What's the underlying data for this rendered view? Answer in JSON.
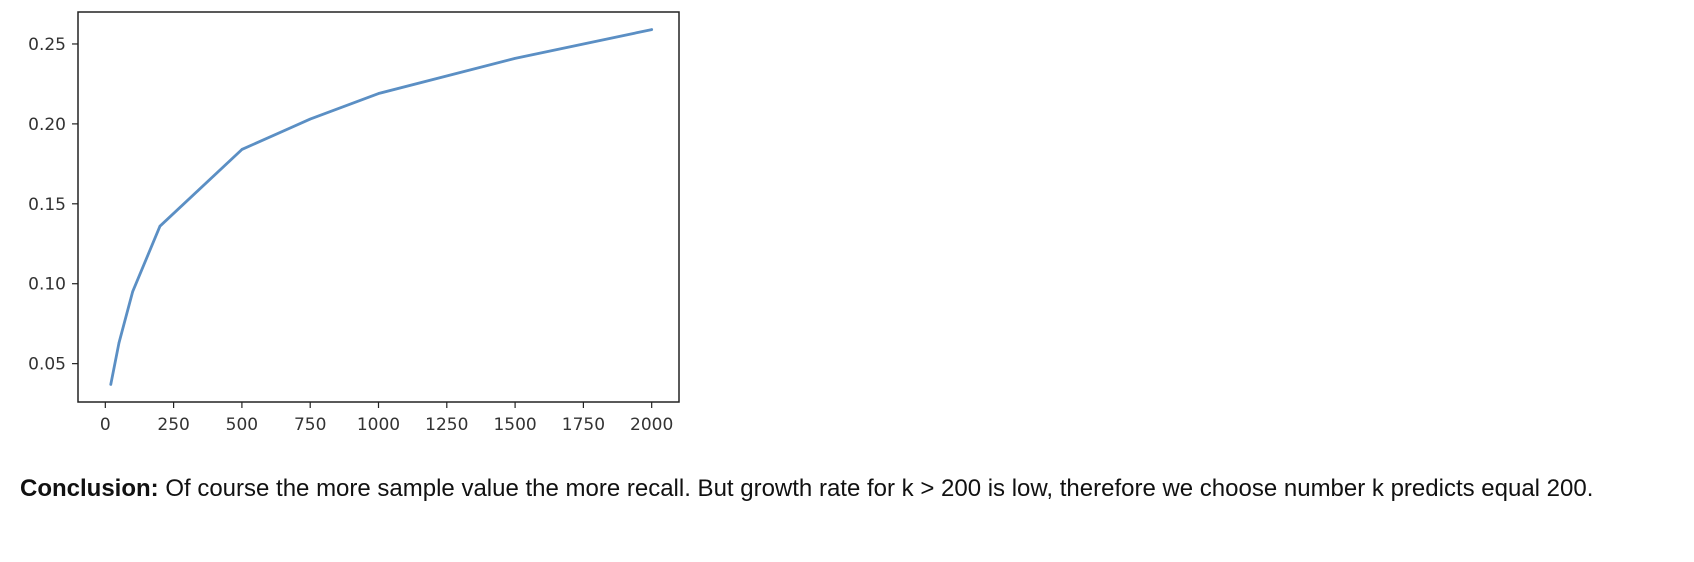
{
  "chart_data": {
    "type": "line",
    "x": [
      20,
      50,
      100,
      200,
      500,
      750,
      1000,
      1500,
      2000
    ],
    "series": [
      {
        "values": [
          0.037,
          0.063,
          0.095,
          0.136,
          0.184,
          0.203,
          0.219,
          0.241,
          0.259
        ],
        "color": "#5b8fc4"
      }
    ],
    "xlim": [
      -100,
      2100
    ],
    "ylim": [
      0.026,
      0.27
    ],
    "x_ticks": [
      0,
      250,
      500,
      750,
      1000,
      1250,
      1500,
      1750,
      2000
    ],
    "y_ticks": [
      0.05,
      0.1,
      0.15,
      0.2,
      0.25
    ],
    "x_tick_labels": [
      "0",
      "250",
      "500",
      "750",
      "1000",
      "1250",
      "1500",
      "1750",
      "2000"
    ],
    "y_tick_labels": [
      "0.05",
      "0.10",
      "0.15",
      "0.20",
      "0.25"
    ],
    "grid": false,
    "legend": false
  },
  "conclusion": {
    "label": "Conclusion:",
    "text": " Of course the more sample value the more recall. But growth rate for k > 200 is low, therefore we choose number k predicts equal 200."
  }
}
